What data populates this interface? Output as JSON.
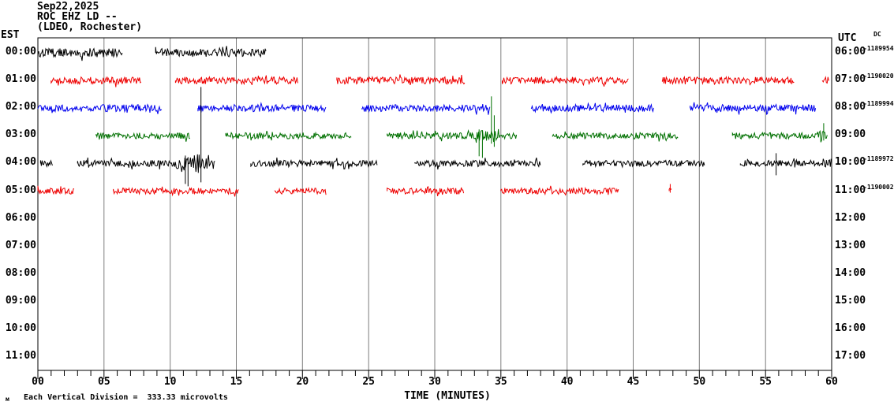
{
  "header": {
    "date": "Sep22,2025",
    "station": "ROC EHZ LD --",
    "location": "(LDEO, Rochester)"
  },
  "axes": {
    "left_label": "EST",
    "right_label": "UTC",
    "dc_label": "DC",
    "x_title": "TIME (MINUTES)",
    "x_ticks": [
      "00",
      "05",
      "10",
      "15",
      "20",
      "25",
      "30",
      "35",
      "40",
      "45",
      "50",
      "55",
      "60"
    ]
  },
  "footer": {
    "prefix": "м",
    "scale_note": "Each Vertical Division =  333.33 microvolts"
  },
  "chart_data": {
    "type": "line",
    "variant": "helicorder-seismogram",
    "title": "ROC EHZ LD -- (LDEO, Rochester) Sep22,2025",
    "xlabel": "TIME (MINUTES)",
    "x_range": [
      0,
      60
    ],
    "x_major_tick_minutes": 5,
    "x_minor_tick_minutes": 1,
    "grid": "vertical-only",
    "colors": {
      "grid": "#7d7d7d",
      "axis": "#000000",
      "background": "#ffffff"
    },
    "rows": [
      {
        "est": "00:00",
        "utc": "06:00",
        "dc": "-1189954",
        "color": "#000000",
        "segments": [
          [
            0,
            6.4,
            5.5
          ],
          [
            8.9,
            17.3,
            5
          ]
        ],
        "bursts": [],
        "spikes": []
      },
      {
        "est": "01:00",
        "utc": "07:00",
        "dc": "-1190020",
        "color": "#ee0000",
        "segments": [
          [
            1.0,
            7.8,
            4.5
          ],
          [
            10.4,
            19.7,
            4.5
          ],
          [
            22.6,
            32.3,
            4.5
          ],
          [
            35.1,
            44.7,
            4.5
          ],
          [
            47.2,
            57.2,
            4.5
          ],
          [
            59.3,
            59.8,
            4.5
          ]
        ],
        "bursts": [],
        "spikes": []
      },
      {
        "est": "02:00",
        "utc": "08:00",
        "dc": "-1189994",
        "color": "#0000ee",
        "segments": [
          [
            0,
            9.4,
            4.5
          ],
          [
            12.1,
            21.8,
            4.5
          ],
          [
            24.5,
            34.2,
            4.5
          ],
          [
            37.3,
            46.6,
            4.5
          ],
          [
            49.3,
            58.8,
            4.5
          ]
        ],
        "bursts": [],
        "spikes": []
      },
      {
        "est": "03:00",
        "utc": "09:00",
        "dc": "",
        "color": "#007000",
        "segments": [
          [
            4.4,
            11.5,
            4
          ],
          [
            14.2,
            23.7,
            4
          ],
          [
            26.4,
            36.2,
            4
          ],
          [
            38.9,
            48.4,
            4
          ],
          [
            52.5,
            59.7,
            4
          ]
        ],
        "bursts": [
          [
            33.1,
            34.9,
            9
          ],
          [
            58.8,
            59.7,
            6
          ]
        ],
        "spikes": [
          {
            "m": 33.35,
            "up": 8,
            "dn": 26
          },
          {
            "m": 33.6,
            "up": 6,
            "dn": 28
          },
          {
            "m": 34.28,
            "up": 50,
            "dn": 10
          },
          {
            "m": 34.5,
            "up": 26,
            "dn": 14
          },
          {
            "m": 59.4,
            "up": 16,
            "dn": 6
          }
        ]
      },
      {
        "est": "04:00",
        "utc": "10:00",
        "dc": "-1189972",
        "color": "#000000",
        "segments": [
          [
            0.2,
            1.1,
            4
          ],
          [
            3.0,
            13.4,
            4
          ],
          [
            16.1,
            25.7,
            4
          ],
          [
            28.5,
            38.0,
            4
          ],
          [
            41.2,
            50.4,
            4
          ],
          [
            53.1,
            60,
            4
          ]
        ],
        "bursts": [
          [
            10.1,
            13.4,
            7
          ],
          [
            10.8,
            12.3,
            12
          ],
          [
            59.2,
            60,
            6
          ]
        ],
        "spikes": [
          {
            "m": 11.15,
            "up": 10,
            "dn": 26
          },
          {
            "m": 11.35,
            "up": 8,
            "dn": 29
          },
          {
            "m": 12.33,
            "up": 97,
            "dn": 24
          },
          {
            "m": 55.8,
            "up": 13,
            "dn": 15
          }
        ]
      },
      {
        "est": "05:00",
        "utc": "11:00",
        "dc": "-1190002",
        "color": "#ee0000",
        "segments": [
          [
            0,
            2.8,
            4
          ],
          [
            5.7,
            15.2,
            4
          ],
          [
            17.9,
            21.8,
            4
          ],
          [
            26.4,
            32.2,
            4
          ],
          [
            35.0,
            43.9,
            4
          ],
          [
            47.72,
            47.95,
            5
          ]
        ],
        "bursts": [],
        "spikes": [
          {
            "m": 47.8,
            "up": 9,
            "dn": 2
          }
        ]
      },
      {
        "est": "06:00",
        "utc": "12:00",
        "dc": "",
        "color": "#000000",
        "segments": [],
        "bursts": [],
        "spikes": []
      },
      {
        "est": "07:00",
        "utc": "13:00",
        "dc": "",
        "color": "#000000",
        "segments": [],
        "bursts": [],
        "spikes": []
      },
      {
        "est": "08:00",
        "utc": "14:00",
        "dc": "",
        "color": "#000000",
        "segments": [],
        "bursts": [],
        "spikes": []
      },
      {
        "est": "09:00",
        "utc": "15:00",
        "dc": "",
        "color": "#000000",
        "segments": [],
        "bursts": [],
        "spikes": []
      },
      {
        "est": "10:00",
        "utc": "16:00",
        "dc": "",
        "color": "#000000",
        "segments": [],
        "bursts": [],
        "spikes": []
      },
      {
        "est": "11:00",
        "utc": "17:00",
        "dc": "",
        "color": "#000000",
        "segments": [],
        "bursts": [],
        "spikes": []
      }
    ]
  }
}
